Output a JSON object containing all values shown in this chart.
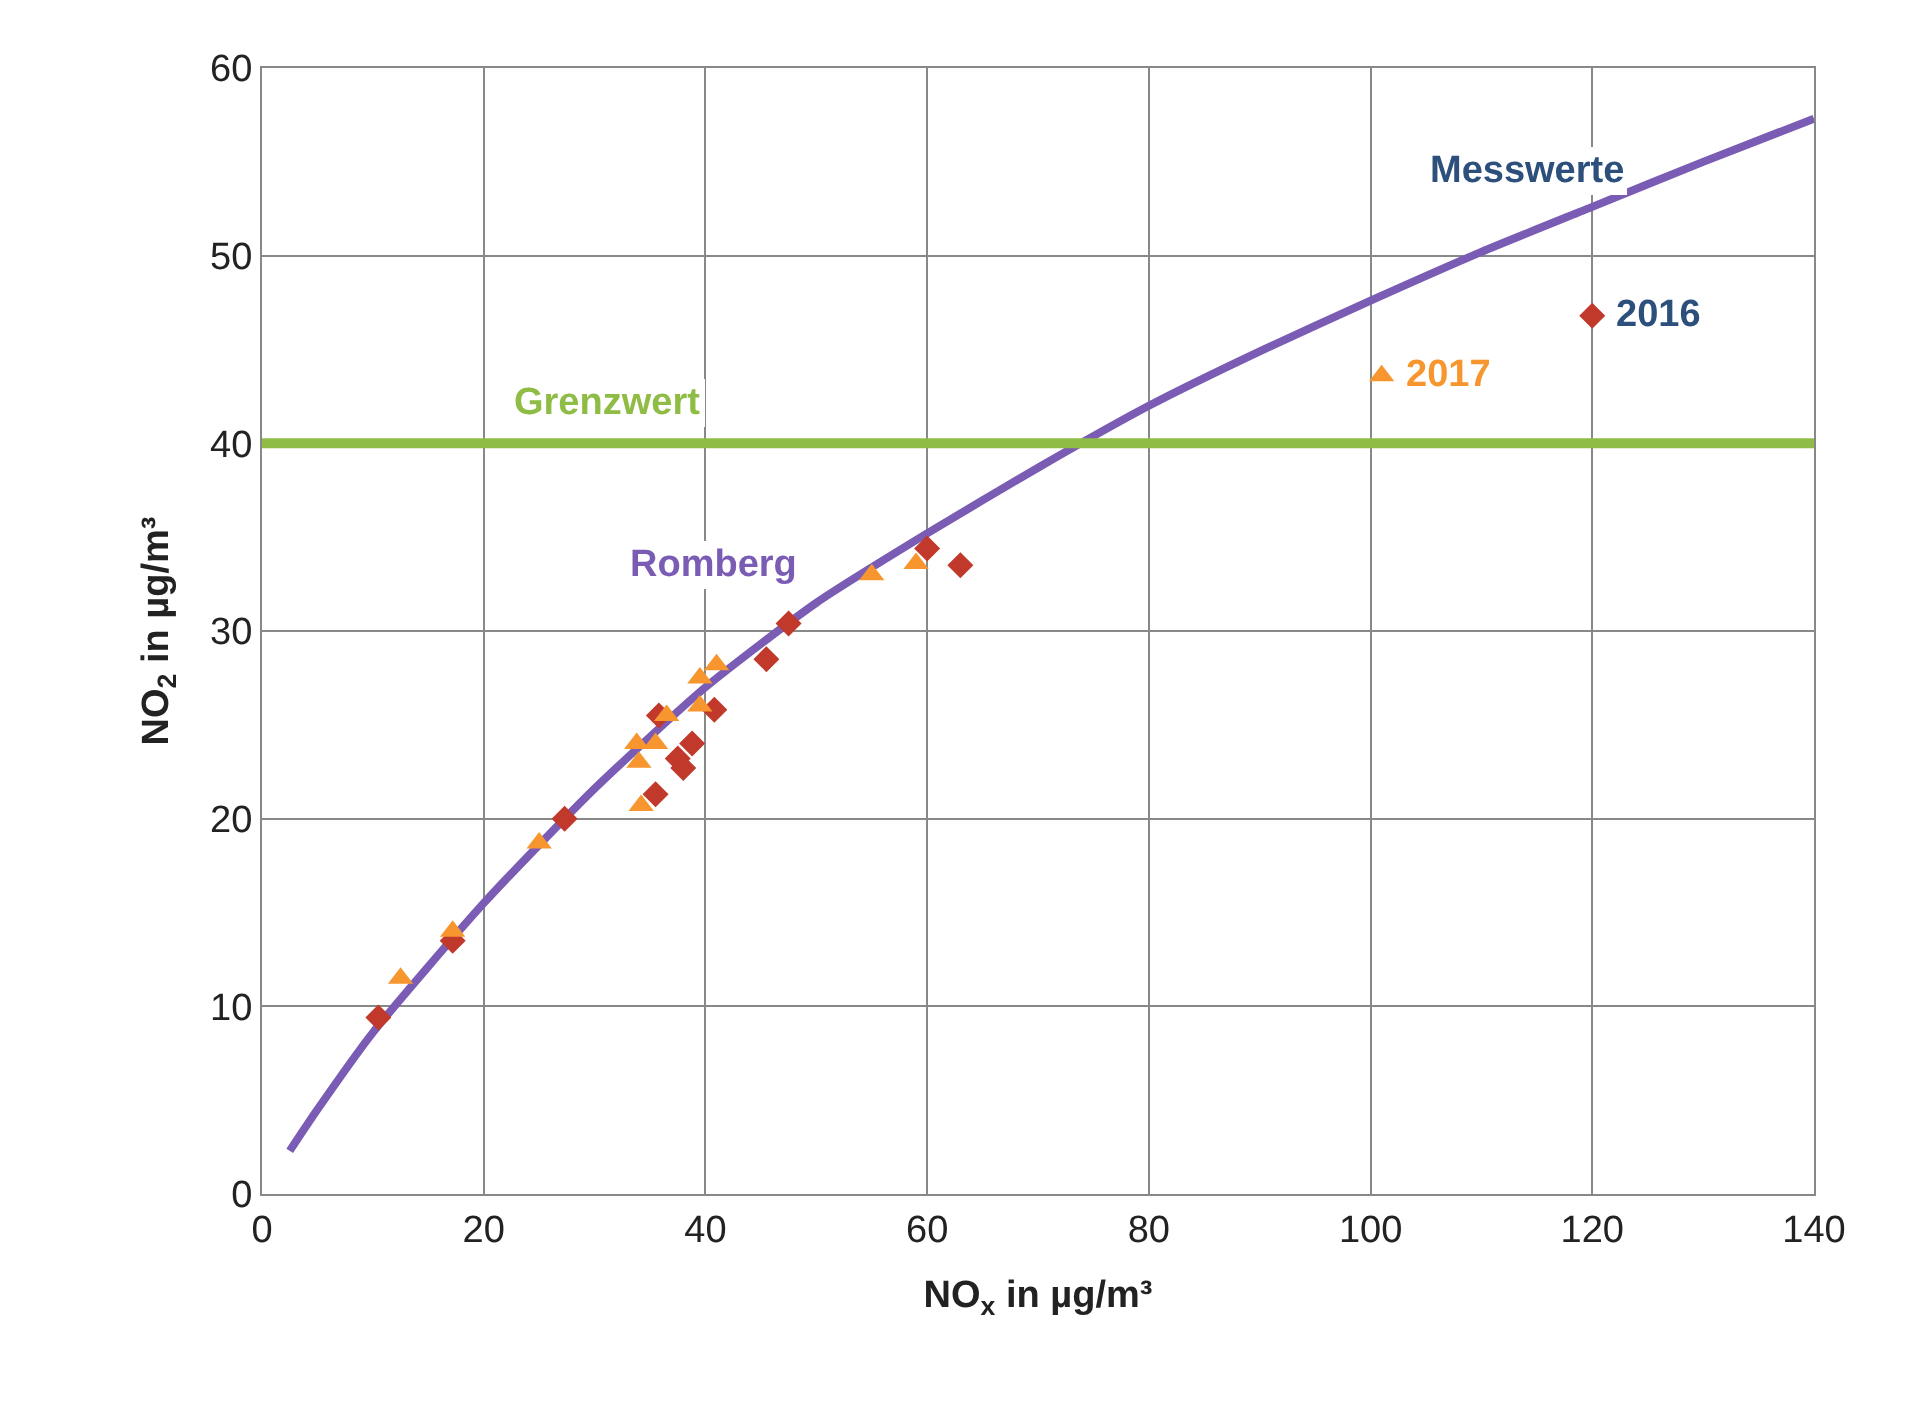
{
  "chart_data": {
    "type": "scatter",
    "xlabel": "NO$_{x}$ in µg/m³",
    "ylabel": "NO$_{2}$ in µg/m³",
    "xlim": [
      0,
      140
    ],
    "xticks": [
      0,
      20,
      40,
      60,
      80,
      100,
      120,
      140
    ],
    "ylim": [
      0,
      60
    ],
    "yticks": [
      0,
      10,
      20,
      30,
      40,
      50,
      60
    ],
    "grid": true,
    "legend": false,
    "annotations": [
      "Messwerte"
    ],
    "ref_lines": [
      {
        "axis": "y",
        "value": 40,
        "label": "Grenzwert",
        "color": "#8fbc45"
      }
    ],
    "series": [
      {
        "name": "Romberg",
        "type": "line",
        "marker": "none",
        "color": "#7a5cb5",
        "x": [
          2.5,
          5,
          10,
          20,
          30,
          40,
          50,
          60,
          70,
          80,
          90,
          100,
          110,
          120,
          130,
          140
        ],
        "values": [
          2.3,
          4.5,
          8.6,
          15.5,
          21.6,
          27,
          31.5,
          35.2,
          38.7,
          42,
          44.9,
          47.6,
          50.2,
          52.6,
          55,
          57.3
        ]
      },
      {
        "name": "2016",
        "marker": "diamond",
        "color": "#c0392b",
        "x": [
          10.5,
          17.2,
          27.3,
          35.5,
          35.8,
          37.5,
          38.0,
          38.8,
          40.8,
          45.5,
          47.5,
          60.0,
          63.0,
          120.0
        ],
        "values": [
          9.4,
          13.5,
          20.0,
          21.3,
          25.5,
          23.2,
          22.7,
          24.0,
          25.8,
          28.5,
          30.4,
          34.4,
          33.5,
          46.8
        ]
      },
      {
        "name": "2017",
        "marker": "triangle",
        "color": "#f7962f",
        "x": [
          12.5,
          17.2,
          25.0,
          33.8,
          34.0,
          34.2,
          35.5,
          36.5,
          39.5,
          39.5,
          41.0,
          55.0,
          59.0,
          101.0
        ],
        "values": [
          11.5,
          14.0,
          18.7,
          24.0,
          23.0,
          20.7,
          24.0,
          25.5,
          27.5,
          26.0,
          28.2,
          33.0,
          33.6,
          43.6
        ]
      }
    ]
  }
}
